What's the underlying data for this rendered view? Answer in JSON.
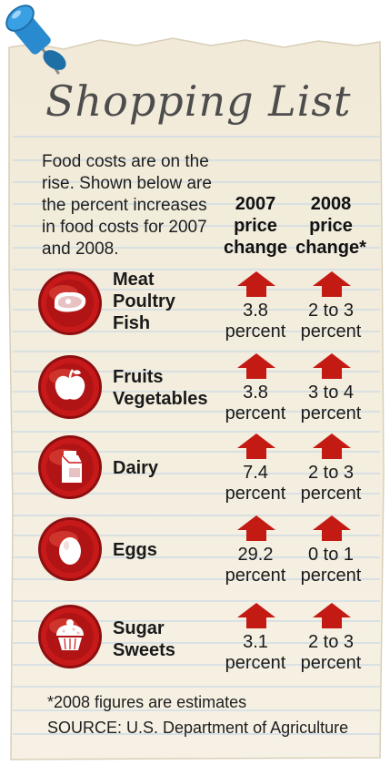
{
  "title": "Shopping List",
  "intro": "Food costs are on the rise. Shown below are the percent increases in food costs for 2007 and 2008.",
  "columns": [
    {
      "line1": "2007",
      "line2": "price",
      "line3": "change"
    },
    {
      "line1": "2008",
      "line2": "price",
      "line3": "change*"
    }
  ],
  "rows": [
    {
      "icon": "steak-icon",
      "category": [
        "Meat",
        "Poultry",
        "Fish"
      ],
      "v2007": [
        "3.8",
        "percent"
      ],
      "v2008": [
        "2 to 3",
        "percent"
      ]
    },
    {
      "icon": "apple-icon",
      "category": [
        "Fruits",
        "Vegetables"
      ],
      "v2007": [
        "3.8",
        "percent"
      ],
      "v2008": [
        "3 to 4",
        "percent"
      ]
    },
    {
      "icon": "milk-carton-icon",
      "category": [
        "Dairy"
      ],
      "v2007": [
        "7.4",
        "percent"
      ],
      "v2008": [
        "2 to 3",
        "percent"
      ]
    },
    {
      "icon": "egg-icon",
      "category": [
        "Eggs"
      ],
      "v2007": [
        "29.2",
        "percent"
      ],
      "v2008": [
        "0 to 1",
        "percent"
      ]
    },
    {
      "icon": "cupcake-icon",
      "category": [
        "Sugar",
        "Sweets"
      ],
      "v2007": [
        "3.1",
        "percent"
      ],
      "v2008": [
        "2 to 3",
        "percent"
      ]
    }
  ],
  "footnote": "*2008 figures are estimates",
  "source": "SOURCE: U.S. Department of Agriculture",
  "colors": {
    "badge_red": "#c8191a",
    "arrow_red": "#c41a14",
    "paper": "#f6f1e4",
    "rule": "#bcd0df"
  }
}
